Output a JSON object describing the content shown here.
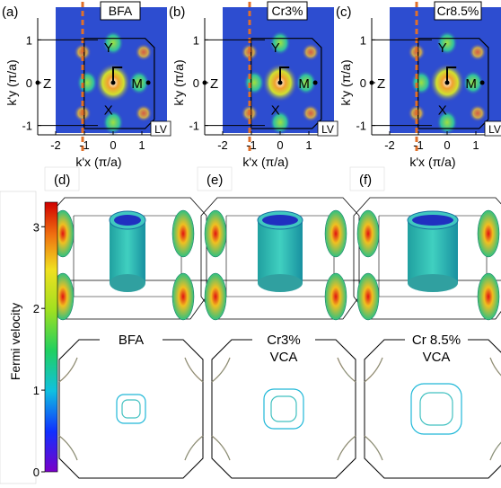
{
  "arpes_panels": [
    {
      "label": "(a)",
      "sample": "BFA"
    },
    {
      "label": "(b)",
      "sample": "Cr3%"
    },
    {
      "label": "(c)",
      "sample": "Cr8.5%"
    }
  ],
  "points": {
    "gamma": "Γ",
    "y": "Y",
    "z": "Z",
    "m": "M",
    "x": "X"
  },
  "polarization": "LV",
  "y_axis_label": "k'y (π/a)",
  "x_axis_label": "k'x (π/a)",
  "x_ticks": [
    "-2",
    "-1",
    "0",
    "1"
  ],
  "y_ticks": [
    "1",
    "0",
    "-1"
  ],
  "fs3d_panels": [
    {
      "label": "(d)"
    },
    {
      "label": "(e)"
    },
    {
      "label": "(f)"
    }
  ],
  "contour_captions": [
    {
      "line1": "BFA",
      "line2": ""
    },
    {
      "line1": "Cr3%",
      "line2": "VCA"
    },
    {
      "line1": "Cr 8.5%",
      "line2": "VCA"
    }
  ],
  "colorbar": {
    "label": "Fermi velocity",
    "ticks": [
      "3",
      "2",
      "1",
      "0"
    ],
    "min": 0,
    "max": 3.3
  },
  "colors": {
    "dashed_line": "#e0702a",
    "map_background": "#3040c8"
  }
}
